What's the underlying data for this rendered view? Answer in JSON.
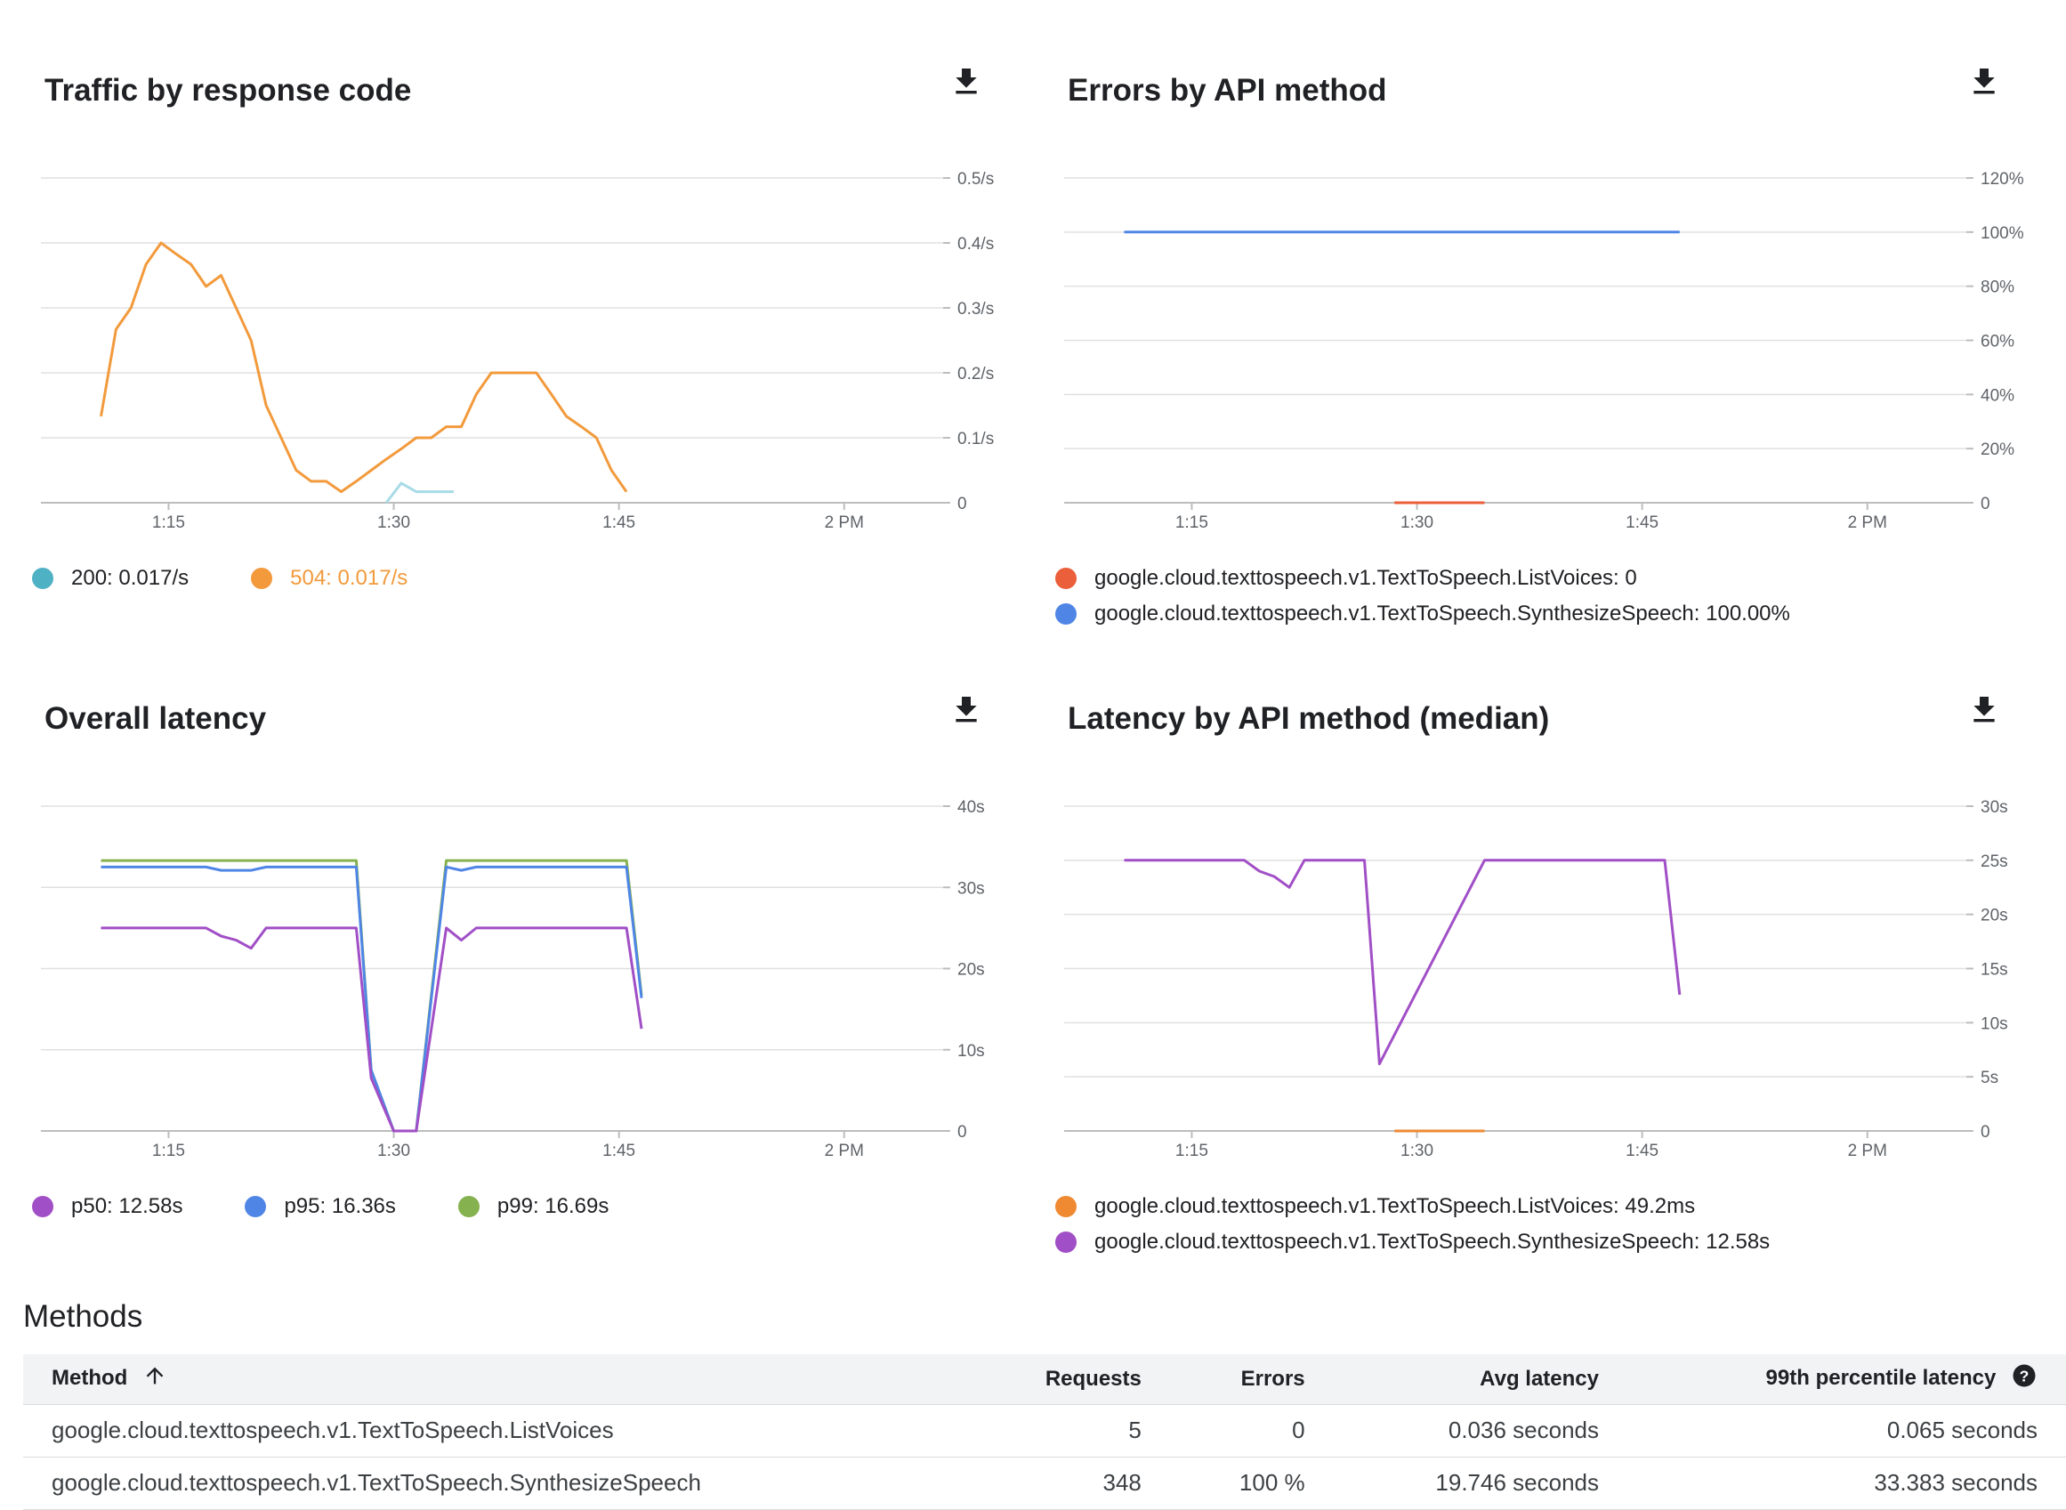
{
  "charts": {
    "traffic": {
      "title": "Traffic by response code",
      "download_icon": "download-icon",
      "legend": [
        {
          "label": "200:",
          "value": "0.017/s",
          "color": "#4fb1c4",
          "text_color": "#202124"
        },
        {
          "label": "504:",
          "value": "0.017/s",
          "color": "#f29a3c",
          "text_color": "#f29a3c"
        }
      ]
    },
    "errors": {
      "title": "Errors by API method",
      "download_icon": "download-icon",
      "legend": [
        {
          "label": "google.cloud.texttospeech.v1.TextToSpeech.ListVoices:",
          "value": "0",
          "color": "#eb5f3a"
        },
        {
          "label": "google.cloud.texttospeech.v1.TextToSpeech.SynthesizeSpeech:",
          "value": "100.00%",
          "color": "#4f86e6"
        }
      ]
    },
    "latency": {
      "title": "Overall latency",
      "download_icon": "download-icon",
      "legend": [
        {
          "label": "p50:",
          "value": "12.58s",
          "color": "#a14fc6"
        },
        {
          "label": "p95:",
          "value": "16.36s",
          "color": "#4f86e6"
        },
        {
          "label": "p99:",
          "value": "16.69s",
          "color": "#86b14f"
        }
      ]
    },
    "latency_method": {
      "title": "Latency by API method (median)",
      "download_icon": "download-icon",
      "legend": [
        {
          "label": "google.cloud.texttospeech.v1.TextToSpeech.ListVoices:",
          "value": "49.2ms",
          "color": "#ef8a33"
        },
        {
          "label": "google.cloud.texttospeech.v1.TextToSpeech.SynthesizeSpeech:",
          "value": "12.58s",
          "color": "#a14fc6"
        }
      ]
    }
  },
  "chart_data": [
    {
      "type": "line",
      "title": "Traffic by response code",
      "x_ticks": [
        "1:15",
        "1:30",
        "1:45",
        "2 PM"
      ],
      "y_ticks": [
        "0",
        "0.1/s",
        "0.2/s",
        "0.3/s",
        "0.4/s",
        "0.5/s"
      ],
      "ylim": [
        0,
        0.5
      ],
      "xlim_minutes": [
        6.5,
        66
      ],
      "series": [
        {
          "name": "200",
          "color": "#a8dbe7",
          "x": [
            29.5,
            30.5,
            31.5,
            32.5,
            33.5,
            34
          ],
          "y": [
            0.0,
            0.03,
            0.017,
            0.017,
            0.017,
            0.017
          ]
        },
        {
          "name": "504",
          "color": "#f29a3c",
          "x": [
            10.5,
            11.5,
            12.5,
            13.5,
            14.5,
            15.5,
            16.5,
            17,
            17.5,
            18.5,
            19.5,
            20.5,
            21.5,
            22.5,
            23.5,
            24.5,
            25.5,
            26.5,
            27.5,
            28.5,
            29.5,
            30.5,
            31.5,
            32.5,
            33.5,
            34.5,
            35.5,
            36.5,
            37.5,
            38.5,
            39.5,
            40.5,
            41.5,
            42.5,
            43.5,
            44.5,
            45.5
          ],
          "y": [
            0.133,
            0.267,
            0.3,
            0.367,
            0.4,
            0.383,
            0.367,
            0.35,
            0.333,
            0.35,
            0.3,
            0.25,
            0.15,
            0.1,
            0.05,
            0.033,
            0.033,
            0.017,
            0.033,
            0.05,
            0.067,
            0.083,
            0.1,
            0.1,
            0.117,
            0.117,
            0.167,
            0.2,
            0.2,
            0.2,
            0.2,
            0.167,
            0.133,
            0.117,
            0.1,
            0.05,
            0.017
          ]
        }
      ]
    },
    {
      "type": "line",
      "title": "Errors by API method",
      "x_ticks": [
        "1:15",
        "1:30",
        "1:45",
        "2 PM"
      ],
      "y_ticks": [
        "0",
        "20%",
        "40%",
        "60%",
        "80%",
        "100%",
        "120%"
      ],
      "ylim": [
        0,
        120
      ],
      "xlim_minutes": [
        6.5,
        66
      ],
      "series": [
        {
          "name": "google.cloud.texttospeech.v1.TextToSpeech.ListVoices",
          "color": "#eb5f3a",
          "x": [
            28.5,
            34.5
          ],
          "y": [
            0,
            0
          ]
        },
        {
          "name": "google.cloud.texttospeech.v1.TextToSpeech.SynthesizeSpeech",
          "color": "#4f86e6",
          "x": [
            10.5,
            47.5
          ],
          "y": [
            100,
            100
          ]
        }
      ]
    },
    {
      "type": "line",
      "title": "Overall latency",
      "x_ticks": [
        "1:15",
        "1:30",
        "1:45",
        "2 PM"
      ],
      "y_ticks": [
        "0",
        "10s",
        "20s",
        "30s",
        "40s"
      ],
      "ylim": [
        0,
        40
      ],
      "xlim_minutes": [
        6.5,
        66
      ],
      "series": [
        {
          "name": "p99",
          "color": "#86b14f",
          "x": [
            10.5,
            17.5,
            27.5,
            28.5,
            30,
            31.5,
            33.5,
            34.5,
            41.5,
            45.5,
            46.5
          ],
          "y": [
            33.3,
            33.3,
            33.3,
            7.5,
            0,
            0,
            33.3,
            33.3,
            33.3,
            33.3,
            16.69
          ]
        },
        {
          "name": "p95",
          "color": "#4f86e6",
          "x": [
            10.5,
            17.5,
            18.5,
            20.5,
            21.5,
            27.5,
            28.5,
            30,
            31.5,
            33.5,
            34.5,
            35.5,
            45.5,
            46.5
          ],
          "y": [
            32.5,
            32.5,
            32.1,
            32.1,
            32.5,
            32.5,
            7.5,
            0,
            0,
            32.5,
            32.1,
            32.5,
            32.5,
            16.36
          ]
        },
        {
          "name": "p50",
          "color": "#a14fc6",
          "x": [
            10.5,
            17.5,
            18.5,
            19.5,
            20.5,
            21.5,
            22.5,
            27.5,
            28.5,
            30,
            31.5,
            33.5,
            34.5,
            35.5,
            45.5,
            46.5
          ],
          "y": [
            25,
            25,
            24,
            23.5,
            22.5,
            25,
            25,
            25,
            6.5,
            0,
            0,
            25,
            23.5,
            25,
            25,
            12.58
          ]
        }
      ]
    },
    {
      "type": "line",
      "title": "Latency by API method (median)",
      "x_ticks": [
        "1:15",
        "1:30",
        "1:45",
        "2 PM"
      ],
      "y_ticks": [
        "0",
        "5s",
        "10s",
        "15s",
        "20s",
        "25s",
        "30s"
      ],
      "ylim": [
        0,
        30
      ],
      "xlim_minutes": [
        6.5,
        66
      ],
      "series": [
        {
          "name": "google.cloud.texttospeech.v1.TextToSpeech.ListVoices",
          "color": "#ef8a33",
          "x": [
            28.5,
            34.5
          ],
          "y": [
            0,
            0
          ]
        },
        {
          "name": "google.cloud.texttospeech.v1.TextToSpeech.SynthesizeSpeech",
          "color": "#a14fc6",
          "x": [
            10.5,
            18.5,
            19.5,
            20.5,
            21.5,
            22.5,
            25.5,
            26.5,
            27.5,
            34.5,
            46.5,
            47.5
          ],
          "y": [
            25,
            25,
            24,
            23.5,
            22.5,
            25,
            25,
            25,
            6.2,
            25,
            25,
            12.58
          ]
        }
      ]
    }
  ],
  "methods": {
    "title": "Methods",
    "columns": {
      "method": "Method",
      "requests": "Requests",
      "errors": "Errors",
      "avg_latency": "Avg latency",
      "p99_latency": "99th percentile latency"
    },
    "sort_icon": "arrow-up-icon",
    "help_icon": "help-icon",
    "rows": [
      {
        "method": "google.cloud.texttospeech.v1.TextToSpeech.ListVoices",
        "requests": "5",
        "errors": "0",
        "avg_latency": "0.036 seconds",
        "p99_latency": "0.065 seconds"
      },
      {
        "method": "google.cloud.texttospeech.v1.TextToSpeech.SynthesizeSpeech",
        "requests": "348",
        "errors": "100 %",
        "avg_latency": "19.746 seconds",
        "p99_latency": "33.383 seconds"
      }
    ]
  }
}
